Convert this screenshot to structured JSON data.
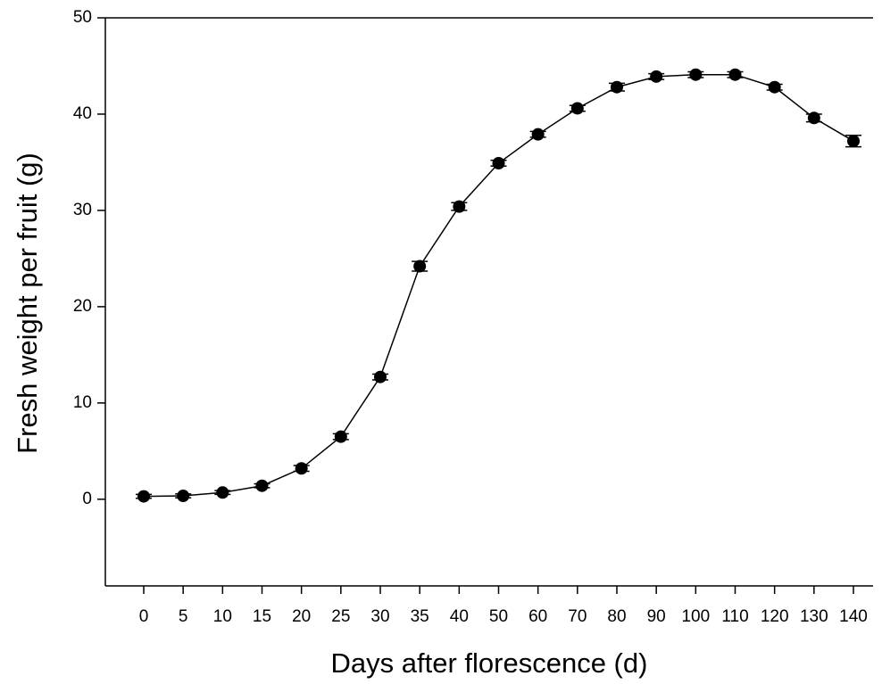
{
  "chart_data": {
    "type": "line",
    "xlabel": "Days after florescence (d)",
    "ylabel": "Fresh weight per fruit (g)",
    "categories": [
      "0",
      "5",
      "10",
      "15",
      "20",
      "25",
      "30",
      "35",
      "40",
      "50",
      "60",
      "70",
      "80",
      "90",
      "100",
      "110",
      "120",
      "130",
      "140"
    ],
    "values": [
      0.3,
      0.35,
      0.7,
      1.4,
      3.2,
      6.5,
      12.7,
      24.2,
      30.4,
      34.9,
      37.9,
      40.6,
      42.8,
      43.9,
      44.1,
      44.1,
      42.8,
      39.6,
      37.2
    ],
    "errors": [
      0.2,
      0.2,
      0.2,
      0.2,
      0.3,
      0.3,
      0.3,
      0.5,
      0.4,
      0.3,
      0.3,
      0.3,
      0.4,
      0.3,
      0.3,
      0.3,
      0.3,
      0.4,
      0.6
    ],
    "color": "#000000",
    "ylim": [
      -9,
      50
    ],
    "yticks": [
      0,
      10,
      20,
      30,
      40,
      50
    ]
  }
}
